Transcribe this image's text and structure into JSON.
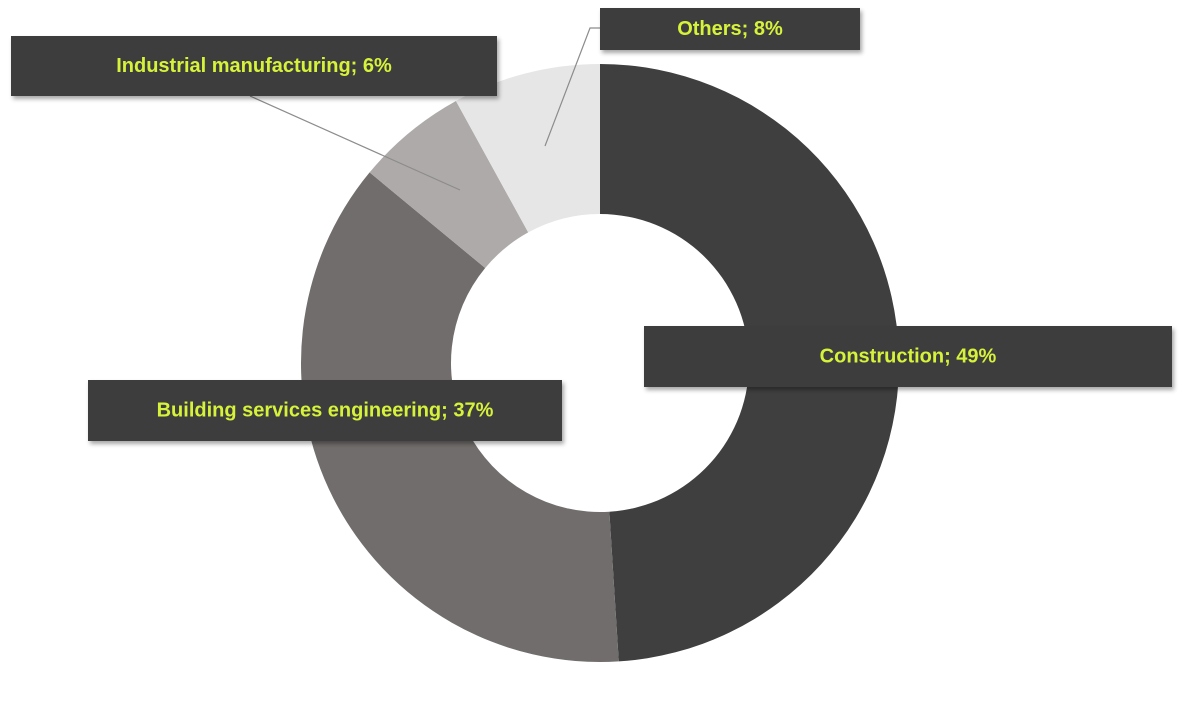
{
  "chart_data": {
    "type": "pie",
    "variant": "donut",
    "title": "",
    "legend": "none",
    "slices": [
      {
        "name": "Construction",
        "value": 49,
        "label": "Construction; 49%",
        "color": "#3f3f3f"
      },
      {
        "name": "Building services engineering",
        "value": 37,
        "label": "Building services engineering; 37%",
        "color": "#716d6c"
      },
      {
        "name": "Industrial manufacturing",
        "value": 6,
        "label": "Industrial manufacturing; 6%",
        "color": "#aeaaa9"
      },
      {
        "name": "Others",
        "value": 8,
        "label": "Others; 8%",
        "color": "#e7e6e6"
      }
    ],
    "label_style": {
      "box_color": "#3c3c3c",
      "text_color": "#d6f23a"
    }
  }
}
